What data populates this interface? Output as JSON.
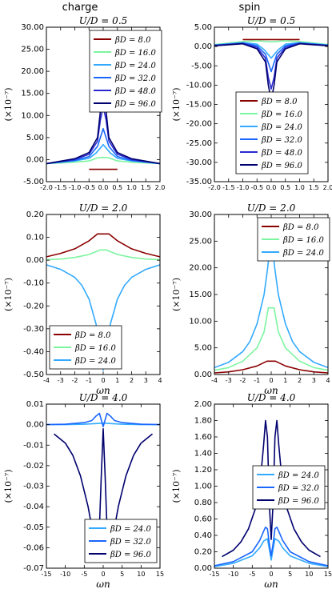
{
  "columns": [
    "charge",
    "spin"
  ],
  "chart_data": [
    {
      "type": "line",
      "panel": "charge-u0.5",
      "title": "U/D = 0.5",
      "xlabel": "",
      "ylabel": "(×10⁻⁷)",
      "xlim": [
        -2.0,
        2.0
      ],
      "ylim": [
        -5.0,
        30.0
      ],
      "xticks": [
        "-2.0",
        "-1.5",
        "-1.0",
        "-0.5",
        "0.0",
        "0.5",
        "1.0",
        "1.5",
        "2.0"
      ],
      "yticks": [
        "-5.00",
        "0.00",
        "5.00",
        "10.00",
        "15.00",
        "20.00",
        "25.00",
        "30.00"
      ],
      "legend_position": "upper right",
      "series": [
        {
          "name": "βD = 8.0",
          "color": "#8b0000",
          "x": [
            -0.5,
            0,
            0.5
          ],
          "y": [
            -2.2,
            -2.2,
            -2.2
          ]
        },
        {
          "name": "βD = 16.0",
          "color": "#7cf5a0",
          "x": [
            -2.0,
            -1.0,
            -0.5,
            -0.2,
            0,
            0.2,
            0.5,
            1.0,
            2.0
          ],
          "y": [
            -0.9,
            -0.6,
            -0.3,
            0.4,
            0.5,
            0.4,
            -0.3,
            -0.6,
            -0.9
          ]
        },
        {
          "name": "βD = 24.0",
          "color": "#33aaff",
          "x": [
            -2.0,
            -1.0,
            -0.5,
            -0.25,
            0,
            0.25,
            0.5,
            1.0,
            2.0
          ],
          "y": [
            -0.9,
            -0.3,
            0.3,
            1.5,
            3.4,
            1.5,
            0.3,
            -0.3,
            -0.9
          ]
        },
        {
          "name": "βD = 32.0",
          "color": "#1a66ff",
          "x": [
            -2.0,
            -1.0,
            -0.5,
            -0.2,
            0,
            0.2,
            0.5,
            1.0,
            2.0
          ],
          "y": [
            -0.9,
            -0.2,
            0.7,
            3.0,
            7.0,
            3.0,
            0.7,
            -0.2,
            -0.9
          ]
        },
        {
          "name": "βD = 48.0",
          "color": "#2a2ad0",
          "x": [
            -2.0,
            -1.0,
            -0.5,
            -0.2,
            -0.1,
            0,
            0.1,
            0.2,
            0.5,
            1.0,
            2.0
          ],
          "y": [
            -0.9,
            0.0,
            1.2,
            4.2,
            9.0,
            12.0,
            9.0,
            4.2,
            1.2,
            0.0,
            -0.9
          ]
        },
        {
          "name": "βD = 96.0",
          "color": "#00006e",
          "x": [
            -2.0,
            -1.0,
            -0.5,
            -0.2,
            -0.1,
            0,
            0.1,
            0.2,
            0.5,
            1.0,
            2.0
          ],
          "y": [
            -0.9,
            0.2,
            1.6,
            5.0,
            11.0,
            14.5,
            11.0,
            5.0,
            1.6,
            0.2,
            -0.9
          ]
        }
      ]
    },
    {
      "type": "line",
      "panel": "spin-u0.5",
      "title": "U/D = 0.5",
      "xlabel": "",
      "ylabel": "(×10⁻⁷)",
      "xlim": [
        -2.0,
        2.0
      ],
      "ylim": [
        -35.0,
        5.0
      ],
      "xticks": [
        "-2.0",
        "-1.5",
        "-1.0",
        "-0.5",
        "0.0",
        "0.5",
        "1.0",
        "1.5",
        "2.0"
      ],
      "yticks": [
        "-35.00",
        "-30.00",
        "-25.00",
        "-20.00",
        "-15.00",
        "-10.00",
        "-5.00",
        "0.00",
        "5.00"
      ],
      "legend_position": "lower center",
      "series": [
        {
          "name": "βD = 8.0",
          "color": "#8b0000",
          "x": [
            -1.0,
            0,
            1.0
          ],
          "y": [
            1.8,
            1.8,
            1.8
          ]
        },
        {
          "name": "βD = 16.0",
          "color": "#7cf5a0",
          "x": [
            -2.0,
            -1.0,
            -0.5,
            0,
            0.5,
            1.0,
            2.0
          ],
          "y": [
            0.5,
            1.3,
            1.5,
            1.2,
            1.5,
            1.3,
            0.5
          ]
        },
        {
          "name": "βD = 24.0",
          "color": "#33aaff",
          "x": [
            -2.0,
            -1.0,
            -0.5,
            -0.25,
            0,
            0.25,
            0.5,
            1.0,
            2.0
          ],
          "y": [
            0.4,
            1.0,
            0.6,
            -0.8,
            -3.0,
            -0.8,
            0.6,
            1.0,
            0.4
          ]
        },
        {
          "name": "βD = 32.0",
          "color": "#1a66ff",
          "x": [
            -2.0,
            -1.0,
            -0.5,
            -0.2,
            0,
            0.2,
            0.5,
            1.0,
            2.0
          ],
          "y": [
            0.3,
            0.9,
            0.2,
            -2.0,
            -6.5,
            -2.0,
            0.2,
            0.9,
            0.3
          ]
        },
        {
          "name": "βD = 48.0",
          "color": "#2a2ad0",
          "x": [
            -2.0,
            -1.0,
            -0.5,
            -0.2,
            -0.1,
            0,
            0.1,
            0.2,
            0.5,
            1.0,
            2.0
          ],
          "y": [
            0.3,
            0.8,
            -0.2,
            -3.0,
            -8.0,
            -11.0,
            -8.0,
            -3.0,
            -0.2,
            0.8,
            0.3
          ]
        },
        {
          "name": "βD = 96.0",
          "color": "#00006e",
          "x": [
            -2.0,
            -1.0,
            -0.5,
            -0.2,
            -0.1,
            0,
            0.1,
            0.2,
            0.5,
            1.0,
            2.0
          ],
          "y": [
            0.2,
            0.7,
            -0.6,
            -4.0,
            -10.0,
            -14.0,
            -10.0,
            -4.0,
            -0.6,
            0.7,
            0.2
          ]
        }
      ]
    },
    {
      "type": "line",
      "panel": "charge-u2.0",
      "title": "U/D = 2.0",
      "xlabel": "ωn",
      "ylabel": "(×10⁻⁷)",
      "xlim": [
        -4,
        4
      ],
      "ylim": [
        -0.5,
        0.2
      ],
      "xticks": [
        "-4",
        "-3",
        "-2",
        "-1",
        "0",
        "1",
        "2",
        "3",
        "4"
      ],
      "yticks": [
        "-0.50",
        "-0.40",
        "-0.30",
        "-0.20",
        "-0.10",
        "0.00",
        "0.10",
        "0.20"
      ],
      "legend_position": "lower left",
      "series": [
        {
          "name": "βD = 8.0",
          "color": "#8b0000",
          "x": [
            -4,
            -3,
            -2,
            -1,
            -0.4,
            0.4,
            1,
            2,
            3,
            4
          ],
          "y": [
            0.015,
            0.03,
            0.05,
            0.085,
            0.115,
            0.115,
            0.085,
            0.05,
            0.03,
            0.015
          ]
        },
        {
          "name": "βD = 16.0",
          "color": "#7cf5a0",
          "x": [
            -4,
            -3,
            -2,
            -1,
            -0.2,
            0.2,
            1,
            2,
            3,
            4
          ],
          "y": [
            0.002,
            0.005,
            0.012,
            0.025,
            0.045,
            0.045,
            0.025,
            0.012,
            0.005,
            0.002
          ]
        },
        {
          "name": "βD = 24.0",
          "color": "#33aaff",
          "x": [
            -4,
            -3,
            -2,
            -1.5,
            -1,
            -0.5,
            -0.25,
            0,
            0.25,
            0.5,
            1,
            1.5,
            2,
            3,
            4
          ],
          "y": [
            -0.02,
            -0.04,
            -0.075,
            -0.11,
            -0.17,
            -0.28,
            -0.38,
            -0.48,
            -0.38,
            -0.28,
            -0.17,
            -0.11,
            -0.075,
            -0.04,
            -0.02
          ]
        }
      ]
    },
    {
      "type": "line",
      "panel": "spin-u2.0",
      "title": "U/D = 2.0",
      "xlabel": "ωn",
      "ylabel": "(×10⁻⁷)",
      "xlim": [
        -4,
        4
      ],
      "ylim": [
        0.0,
        30.0
      ],
      "xticks": [
        "-4",
        "-3",
        "-2",
        "-1",
        "0",
        "1",
        "2",
        "3",
        "4"
      ],
      "yticks": [
        "0.00",
        "5.00",
        "10.00",
        "15.00",
        "20.00",
        "25.00",
        "30.00"
      ],
      "legend_position": "upper right",
      "series": [
        {
          "name": "βD = 8.0",
          "color": "#8b0000",
          "x": [
            -4,
            -3,
            -2,
            -1,
            -0.3,
            0.3,
            1,
            2,
            3,
            4
          ],
          "y": [
            0.3,
            0.5,
            0.9,
            1.6,
            2.5,
            2.5,
            1.6,
            0.9,
            0.5,
            0.3
          ]
        },
        {
          "name": "βD = 16.0",
          "color": "#7cf5a0",
          "x": [
            -4,
            -3,
            -2,
            -1,
            -0.5,
            -0.2,
            0.2,
            0.5,
            1,
            2,
            3,
            4
          ],
          "y": [
            0.8,
            1.3,
            2.5,
            5.0,
            8.0,
            12.5,
            12.5,
            8.0,
            5.0,
            2.5,
            1.3,
            0.8
          ]
        },
        {
          "name": "βD = 24.0",
          "color": "#33aaff",
          "x": [
            -4,
            -3,
            -2,
            -1.5,
            -1,
            -0.5,
            -0.25,
            0,
            0.25,
            0.5,
            1,
            1.5,
            2,
            3,
            4
          ],
          "y": [
            1.3,
            2.3,
            4.3,
            6.2,
            9.5,
            15.0,
            20.0,
            26.0,
            20.0,
            15.0,
            9.5,
            6.2,
            4.3,
            2.3,
            1.3
          ]
        }
      ]
    },
    {
      "type": "line",
      "panel": "charge-u4.0",
      "title": "U/D = 4.0",
      "xlabel": "ωn",
      "ylabel": "(×10⁻⁷)",
      "xlim": [
        -15,
        15
      ],
      "ylim": [
        -0.07,
        0.01
      ],
      "xticks": [
        "-15",
        "-10",
        "-5",
        "0",
        "5",
        "10",
        "15"
      ],
      "yticks": [
        "-0.07",
        "-0.06",
        "-0.05",
        "-0.04",
        "-0.03",
        "-0.02",
        "-0.01",
        "0.00",
        "0.01"
      ],
      "legend_position": "lower right",
      "series": [
        {
          "name": "βD = 24.0",
          "color": "#33aaff",
          "x": [
            -15,
            -10,
            -5,
            -2,
            0,
            2,
            5,
            10,
            15
          ],
          "y": [
            0.0,
            0.0,
            0.0002,
            0.0005,
            0.0008,
            0.0005,
            0.0002,
            0.0,
            0.0
          ]
        },
        {
          "name": "βD = 32.0",
          "color": "#1a66ff",
          "x": [
            -15,
            -10,
            -5,
            -3,
            -2,
            -1,
            0,
            1,
            2,
            3,
            5,
            10,
            15
          ],
          "y": [
            0.0,
            0.0002,
            0.001,
            0.002,
            0.004,
            0.0055,
            -0.001,
            0.0055,
            0.004,
            0.002,
            0.001,
            0.0002,
            0.0
          ]
        },
        {
          "name": "βD = 96.0",
          "color": "#00006e",
          "x": [
            -13,
            -10,
            -8,
            -6,
            -4,
            -3,
            -2,
            -1.5,
            -1,
            -0.5,
            0,
            0.5,
            1,
            1.5,
            2,
            3,
            4,
            6,
            8,
            10,
            13
          ],
          "y": [
            -0.0045,
            -0.009,
            -0.015,
            -0.025,
            -0.04,
            -0.05,
            -0.06,
            -0.062,
            -0.05,
            -0.025,
            -0.002,
            -0.025,
            -0.05,
            -0.062,
            -0.06,
            -0.05,
            -0.04,
            -0.025,
            -0.015,
            -0.009,
            -0.0045
          ]
        }
      ]
    },
    {
      "type": "line",
      "panel": "spin-u4.0",
      "title": "U/D = 4.0",
      "xlabel": "ωn",
      "ylabel": "(×10⁻⁷)",
      "xlim": [
        -15,
        15
      ],
      "ylim": [
        0.0,
        2.0
      ],
      "xticks": [
        "-15",
        "-10",
        "-5",
        "0",
        "5",
        "10",
        "15"
      ],
      "yticks": [
        "0.00",
        "0.20",
        "0.40",
        "0.60",
        "0.80",
        "1.00",
        "1.20",
        "1.40",
        "1.60",
        "1.80",
        "2.00"
      ],
      "legend_position": "center right",
      "series": [
        {
          "name": "βD = 24.0",
          "color": "#33aaff",
          "x": [
            -15,
            -10,
            -5,
            -3,
            -2,
            -1,
            0,
            1,
            2,
            3,
            5,
            10,
            15
          ],
          "y": [
            0.02,
            0.06,
            0.15,
            0.25,
            0.33,
            0.36,
            0.1,
            0.36,
            0.33,
            0.25,
            0.15,
            0.06,
            0.02
          ]
        },
        {
          "name": "βD = 32.0",
          "color": "#1a66ff",
          "x": [
            -15,
            -10,
            -5,
            -3,
            -2,
            -1.5,
            -1,
            -0.5,
            0,
            0.5,
            1,
            1.5,
            2,
            3,
            5,
            10,
            15
          ],
          "y": [
            0.03,
            0.08,
            0.2,
            0.34,
            0.45,
            0.5,
            0.48,
            0.3,
            0.15,
            0.3,
            0.48,
            0.5,
            0.45,
            0.34,
            0.2,
            0.08,
            0.03
          ]
        },
        {
          "name": "βD = 96.0",
          "color": "#00006e",
          "x": [
            -13,
            -10,
            -8,
            -6,
            -4,
            -3,
            -2,
            -1.5,
            -1,
            -0.5,
            0,
            0.5,
            1,
            1.5,
            2,
            3,
            4,
            6,
            8,
            10,
            13
          ],
          "y": [
            0.14,
            0.22,
            0.32,
            0.48,
            0.75,
            1.0,
            1.5,
            1.8,
            1.6,
            0.8,
            0.35,
            0.8,
            1.6,
            1.8,
            1.5,
            1.0,
            0.75,
            0.48,
            0.32,
            0.22,
            0.14
          ]
        }
      ]
    }
  ]
}
